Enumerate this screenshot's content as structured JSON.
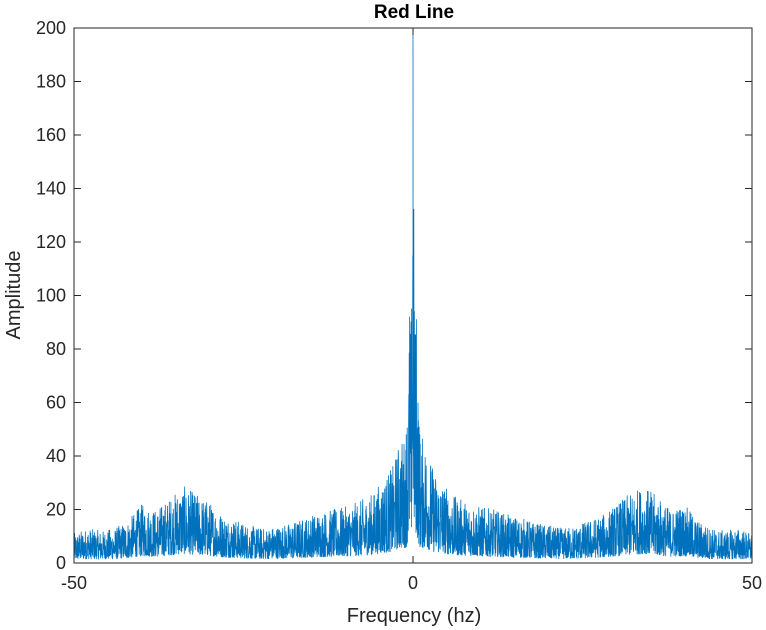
{
  "chart_data": {
    "type": "line",
    "title": "Red Line",
    "xlabel": "Frequency (hz)",
    "ylabel": "Amplitude",
    "xlim": [
      -50,
      50
    ],
    "ylim": [
      0,
      200
    ],
    "xticks": [
      -50,
      0,
      50
    ],
    "yticks": [
      0,
      20,
      40,
      60,
      80,
      100,
      120,
      140,
      160,
      180,
      200
    ],
    "grid": false,
    "legend": "none",
    "series": [
      {
        "color": "#0072BD",
        "x": [
          -50,
          -48,
          -46,
          -44,
          -42,
          -40,
          -38,
          -36,
          -34,
          -32,
          -30,
          -28,
          -26,
          -24,
          -22,
          -20,
          -18,
          -16,
          -14,
          -12,
          -10,
          -8,
          -6,
          -4,
          -3,
          -2,
          -1.5,
          -1,
          -0.5,
          -0.2,
          0,
          0.2,
          0.5,
          1,
          1.5,
          2,
          3,
          4,
          6,
          8,
          10,
          12,
          14,
          16,
          18,
          20,
          22,
          24,
          26,
          28,
          30,
          32,
          34,
          36,
          38,
          40,
          42,
          44,
          46,
          48,
          50
        ],
        "y": [
          11,
          13,
          12,
          13,
          16,
          22,
          20,
          24,
          29,
          26,
          23,
          18,
          16,
          14,
          13,
          14,
          15,
          17,
          19,
          20,
          21,
          23,
          26,
          33,
          36,
          46,
          47,
          48,
          92,
          95,
          200,
          94,
          91,
          48,
          47,
          46,
          35,
          32,
          25,
          23,
          21,
          20,
          18,
          17,
          15,
          14,
          13,
          14,
          16,
          18,
          22,
          26,
          29,
          25,
          20,
          22,
          16,
          13,
          12,
          13,
          11
        ]
      }
    ]
  }
}
